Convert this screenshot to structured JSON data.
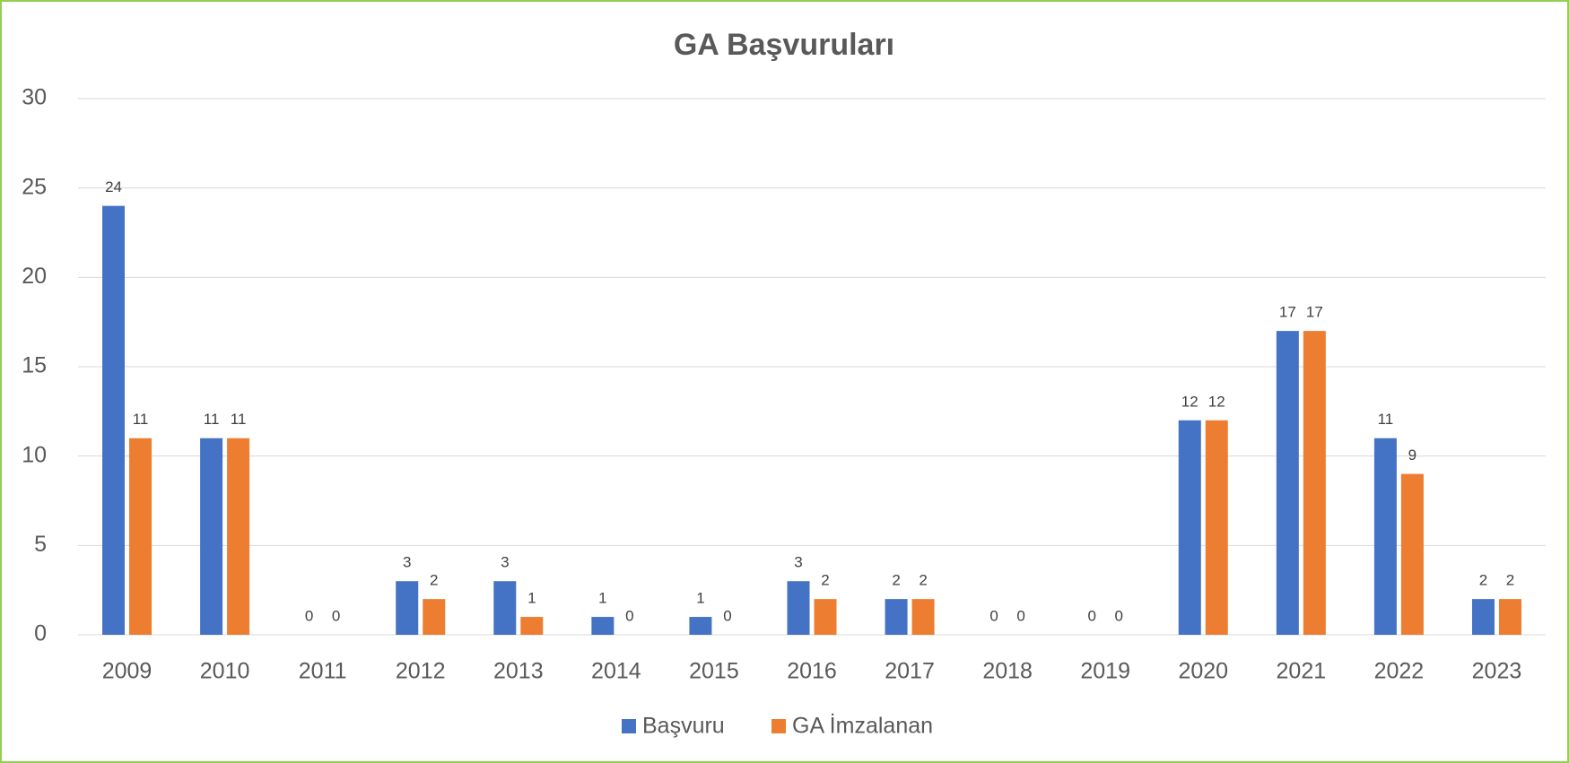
{
  "chart_data": {
    "type": "bar",
    "title": "GA Başvuruları",
    "categories": [
      "2009",
      "2010",
      "2011",
      "2012",
      "2013",
      "2014",
      "2015",
      "2016",
      "2017",
      "2018",
      "2019",
      "2020",
      "2021",
      "2022",
      "2023"
    ],
    "series": [
      {
        "name": "Başvuru",
        "color": "#4472c4",
        "values": [
          24,
          11,
          0,
          3,
          3,
          1,
          1,
          3,
          2,
          0,
          0,
          12,
          17,
          11,
          2
        ]
      },
      {
        "name": "GA İmzalanan",
        "color": "#ed7d31",
        "values": [
          11,
          11,
          0,
          2,
          1,
          0,
          0,
          2,
          2,
          0,
          0,
          12,
          17,
          9,
          2
        ]
      }
    ],
    "ylim": [
      0,
      30
    ],
    "yticks": [
      0,
      5,
      10,
      15,
      20,
      25,
      30
    ],
    "grid": true,
    "legend": "bottom"
  }
}
